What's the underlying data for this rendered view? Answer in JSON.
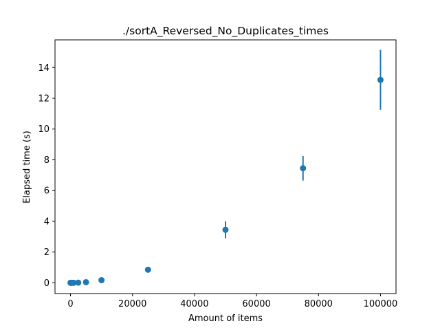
{
  "chart_data": {
    "type": "scatter",
    "title": "./sortA_Reversed_No_Duplicates_times",
    "xlabel": "Amount of items",
    "ylabel": "Elapsed time (s)",
    "xlim": [
      -5000,
      105000
    ],
    "ylim": [
      -0.7,
      15.8
    ],
    "xticks": [
      0,
      20000,
      40000,
      60000,
      80000,
      100000
    ],
    "yticks": [
      0,
      2,
      4,
      6,
      8,
      10,
      12,
      14
    ],
    "grid": false,
    "marker_color": "#1f77b4",
    "points": [
      {
        "x": 10,
        "y": 0.0,
        "err": 0.0
      },
      {
        "x": 100,
        "y": 0.0,
        "err": 0.0
      },
      {
        "x": 500,
        "y": 0.0,
        "err": 0.0
      },
      {
        "x": 1000,
        "y": 0.0,
        "err": 0.0
      },
      {
        "x": 2500,
        "y": 0.01,
        "err": 0.0
      },
      {
        "x": 5000,
        "y": 0.04,
        "err": 0.0
      },
      {
        "x": 10000,
        "y": 0.17,
        "err": 0.0
      },
      {
        "x": 25000,
        "y": 0.85,
        "err": 0.05
      },
      {
        "x": 50000,
        "y": 3.45,
        "err": 0.55
      },
      {
        "x": 75000,
        "y": 7.45,
        "err": 0.8
      },
      {
        "x": 100000,
        "y": 13.2,
        "err": 1.95
      }
    ]
  }
}
